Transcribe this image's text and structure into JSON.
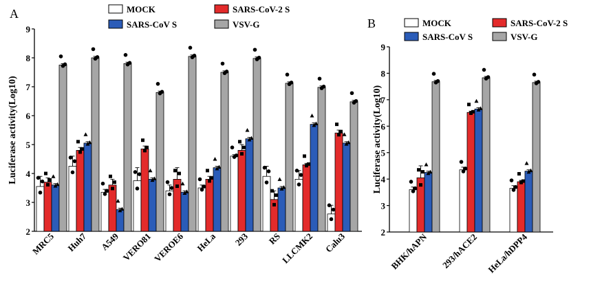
{
  "colors": {
    "mock": "#ffffff",
    "sars2": "#e32b2b",
    "sars1": "#2b5cb8",
    "vsvg": "#a6a6a6"
  },
  "chart_data": [
    {
      "panel": "A",
      "type": "bar",
      "ylabel": "Luciferase activity(Log10)",
      "ylim": [
        2,
        9
      ],
      "yticks": [
        "2",
        "3",
        "4",
        "5",
        "6",
        "7",
        "8",
        "9"
      ],
      "categories": [
        "MRC5",
        "Huh7",
        "A549",
        "VERO81",
        "VEROE6",
        "HeLa",
        "293",
        "RS",
        "LLCMK2",
        "Calu3"
      ],
      "legend": [
        "MOCK",
        "SARS-CoV-2  S",
        "SARS-CoV S",
        "VSV-G"
      ],
      "series": [
        {
          "name": "MOCK",
          "values": [
            3.55,
            4.25,
            3.35,
            3.75,
            3.4,
            3.5,
            4.6,
            3.9,
            3.8,
            2.6
          ],
          "err": [
            0.35,
            0.35,
            0.1,
            0.45,
            0.2,
            0.1,
            0.05,
            0.35,
            0.3,
            0.3
          ]
        },
        {
          "name": "SARS-CoV-2  S",
          "values": [
            3.7,
            4.8,
            3.6,
            4.85,
            3.8,
            3.8,
            4.8,
            3.1,
            4.3,
            5.4
          ],
          "err": [
            0.15,
            0.1,
            0.2,
            0.1,
            0.4,
            0.1,
            0.2,
            0.3,
            0.05,
            0.1
          ]
        },
        {
          "name": "SARS-CoV S",
          "values": [
            3.6,
            5.05,
            2.75,
            3.8,
            3.35,
            4.2,
            5.2,
            3.5,
            5.7,
            5.05
          ]
        },
        {
          "name": "VSV-G",
          "values": [
            7.75,
            8.0,
            7.8,
            6.8,
            8.05,
            7.5,
            7.98,
            7.12,
            6.98,
            6.48
          ]
        }
      ]
    },
    {
      "panel": "B",
      "type": "bar",
      "ylabel": "Luciferase activity(Log10)",
      "ylim": [
        2,
        9
      ],
      "yticks": [
        "2",
        "3",
        "4",
        "5",
        "6",
        "7",
        "8",
        "9"
      ],
      "categories": [
        "BHK/hAPN",
        "293/hACE2",
        "HeLa/hDPP4"
      ],
      "legend": [
        "MOCK",
        "SARS-CoV-2  S",
        "SARS-CoV S",
        "VSV-G"
      ],
      "series": [
        {
          "name": "MOCK",
          "values": [
            3.6,
            4.35,
            3.65
          ],
          "err": [
            0.1,
            0.1,
            0.1
          ]
        },
        {
          "name": "SARS-CoV-2  S",
          "values": [
            4.05,
            6.52,
            3.9
          ],
          "err": [
            0.45,
            0.05,
            0.05
          ]
        },
        {
          "name": "SARS-CoV S",
          "values": [
            4.25,
            6.65,
            4.3
          ]
        },
        {
          "name": "VSV-G",
          "values": [
            7.68,
            7.83,
            7.65
          ]
        }
      ]
    }
  ]
}
